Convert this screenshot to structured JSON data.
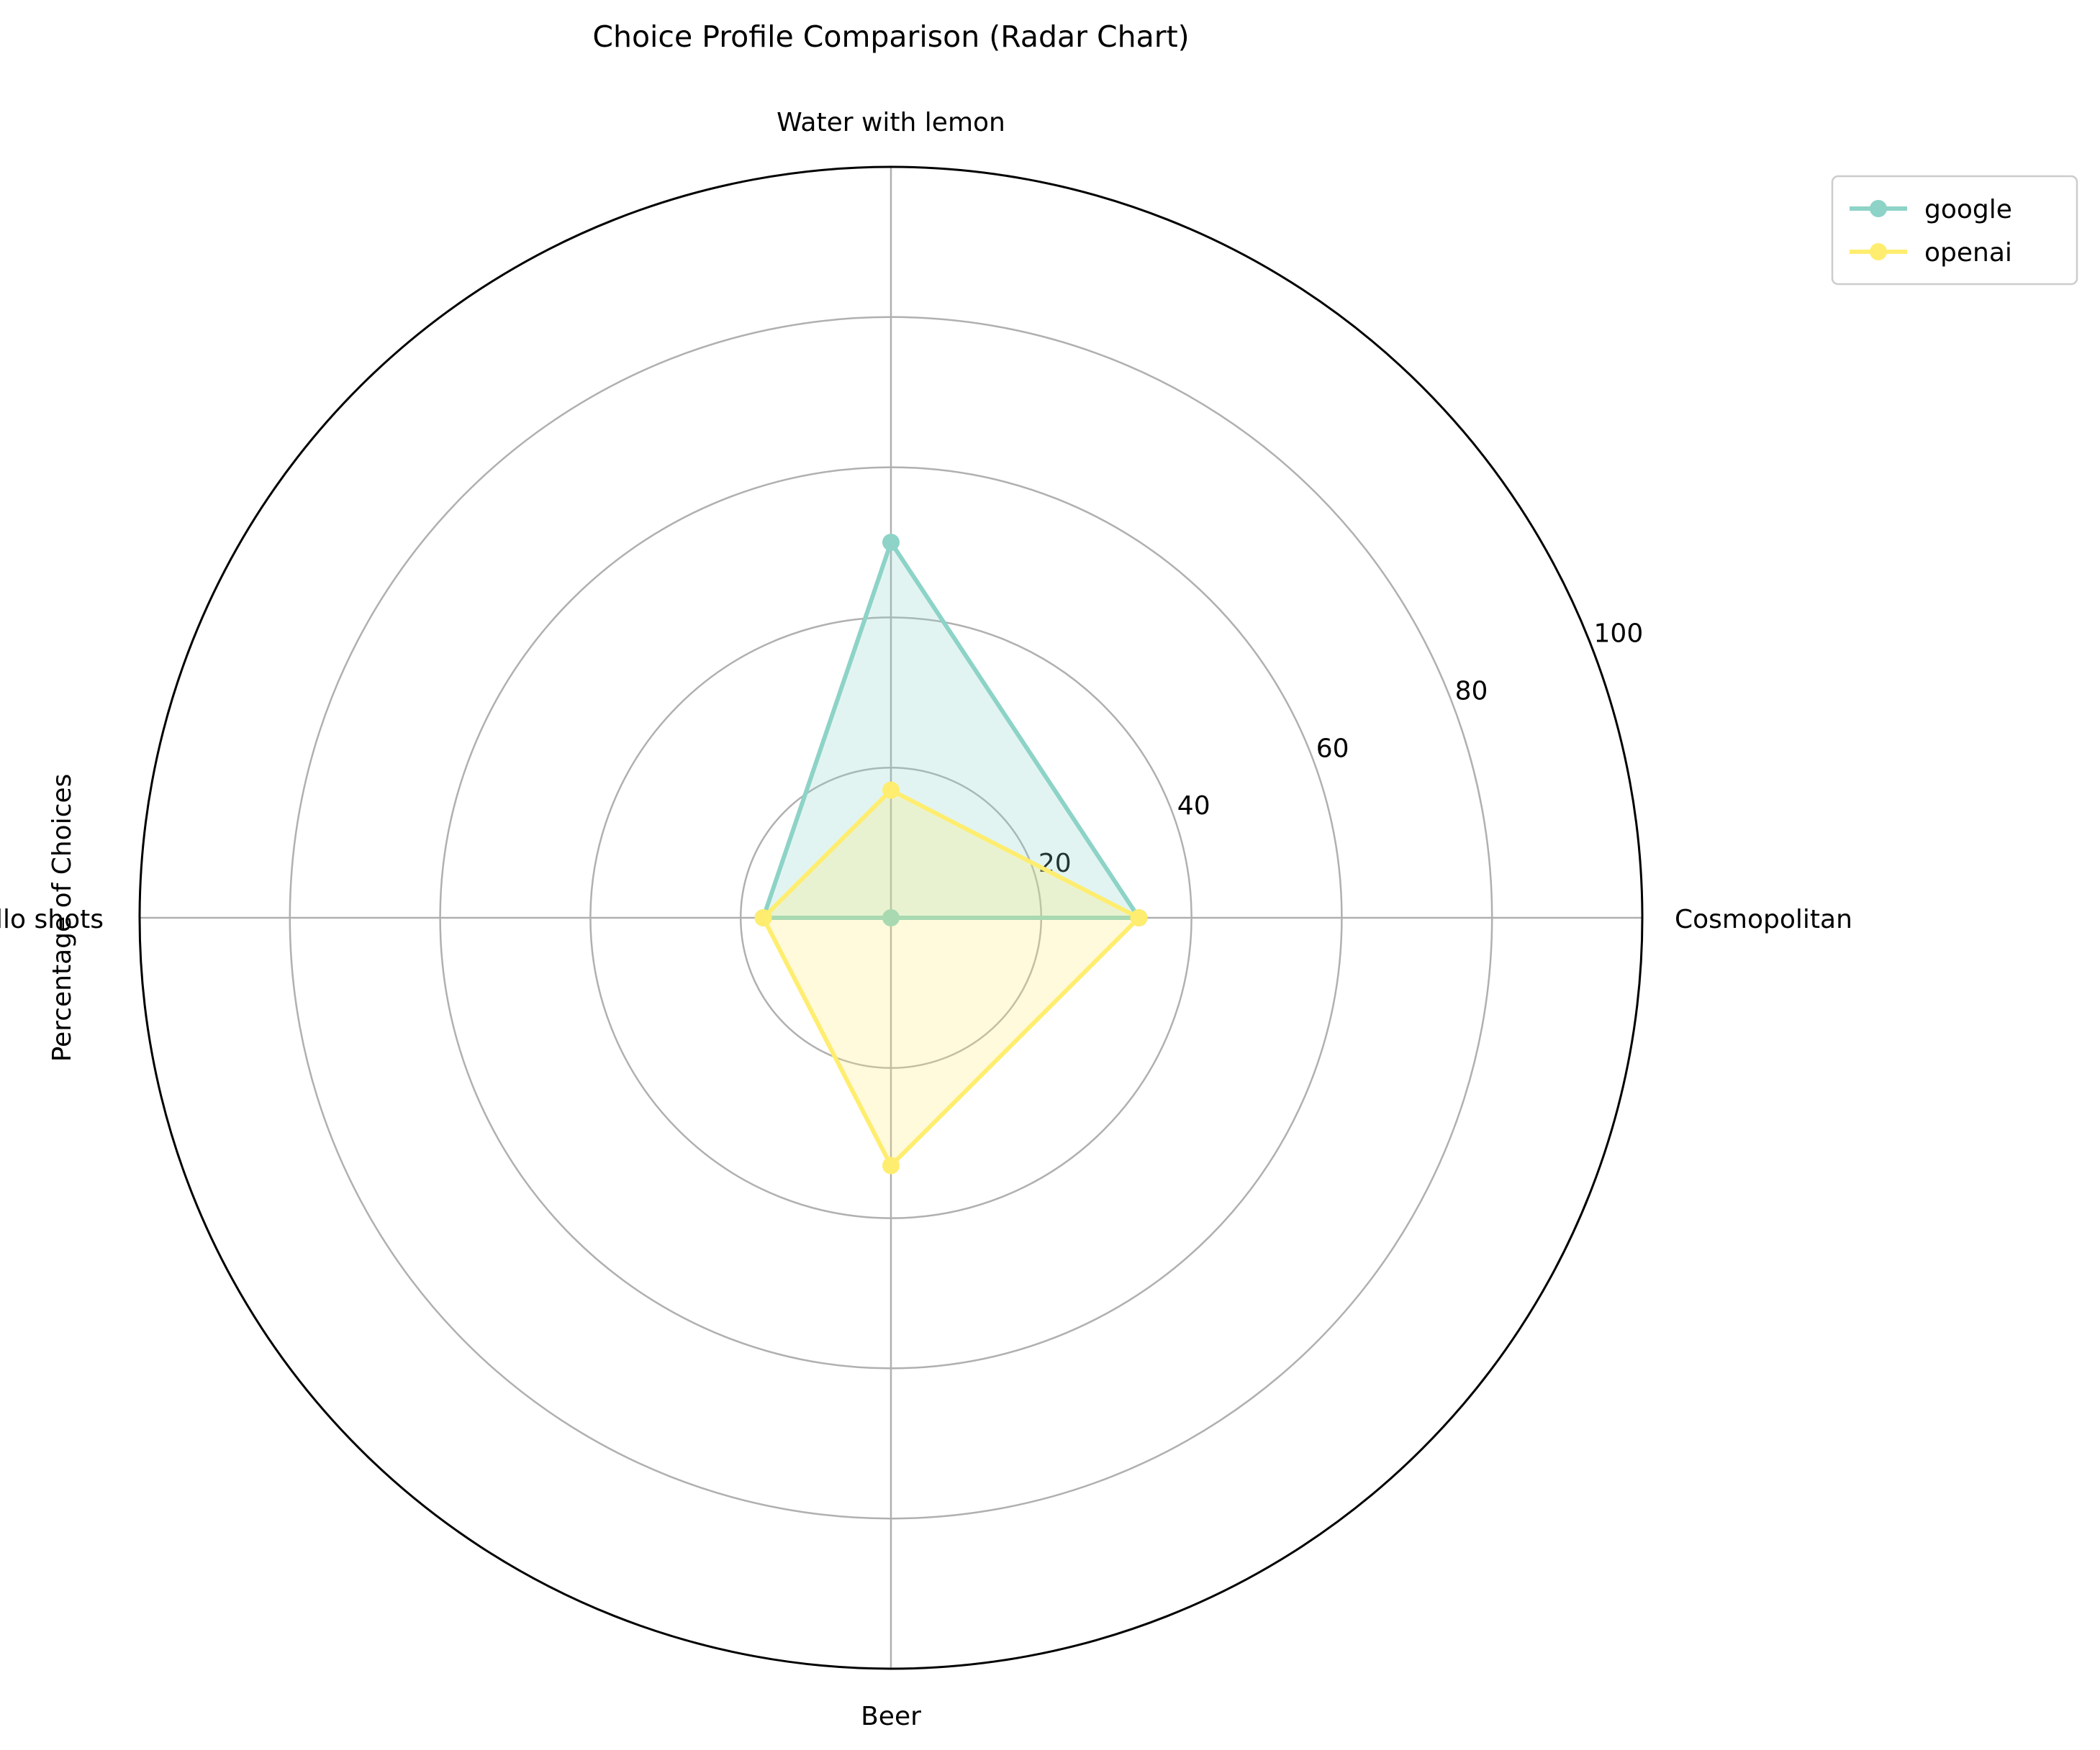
{
  "chart_data": {
    "type": "radar",
    "title": "Choice Profile Comparison (Radar Chart)",
    "ylabel": "Percentage of Choices",
    "categories": [
      "Cosmopolitan",
      "Water with lemon",
      "Jello shots",
      "Beer"
    ],
    "rlim": [
      0,
      100
    ],
    "rticks": [
      20,
      40,
      60,
      80,
      100
    ],
    "grid": true,
    "legend_position": "upper-right-outside",
    "series": [
      {
        "name": "google",
        "color": "#8dd3c7",
        "values": [
          33,
          50,
          17,
          0
        ]
      },
      {
        "name": "openai",
        "color": "#ffed6f",
        "values": [
          33,
          17,
          17,
          33
        ]
      }
    ]
  }
}
